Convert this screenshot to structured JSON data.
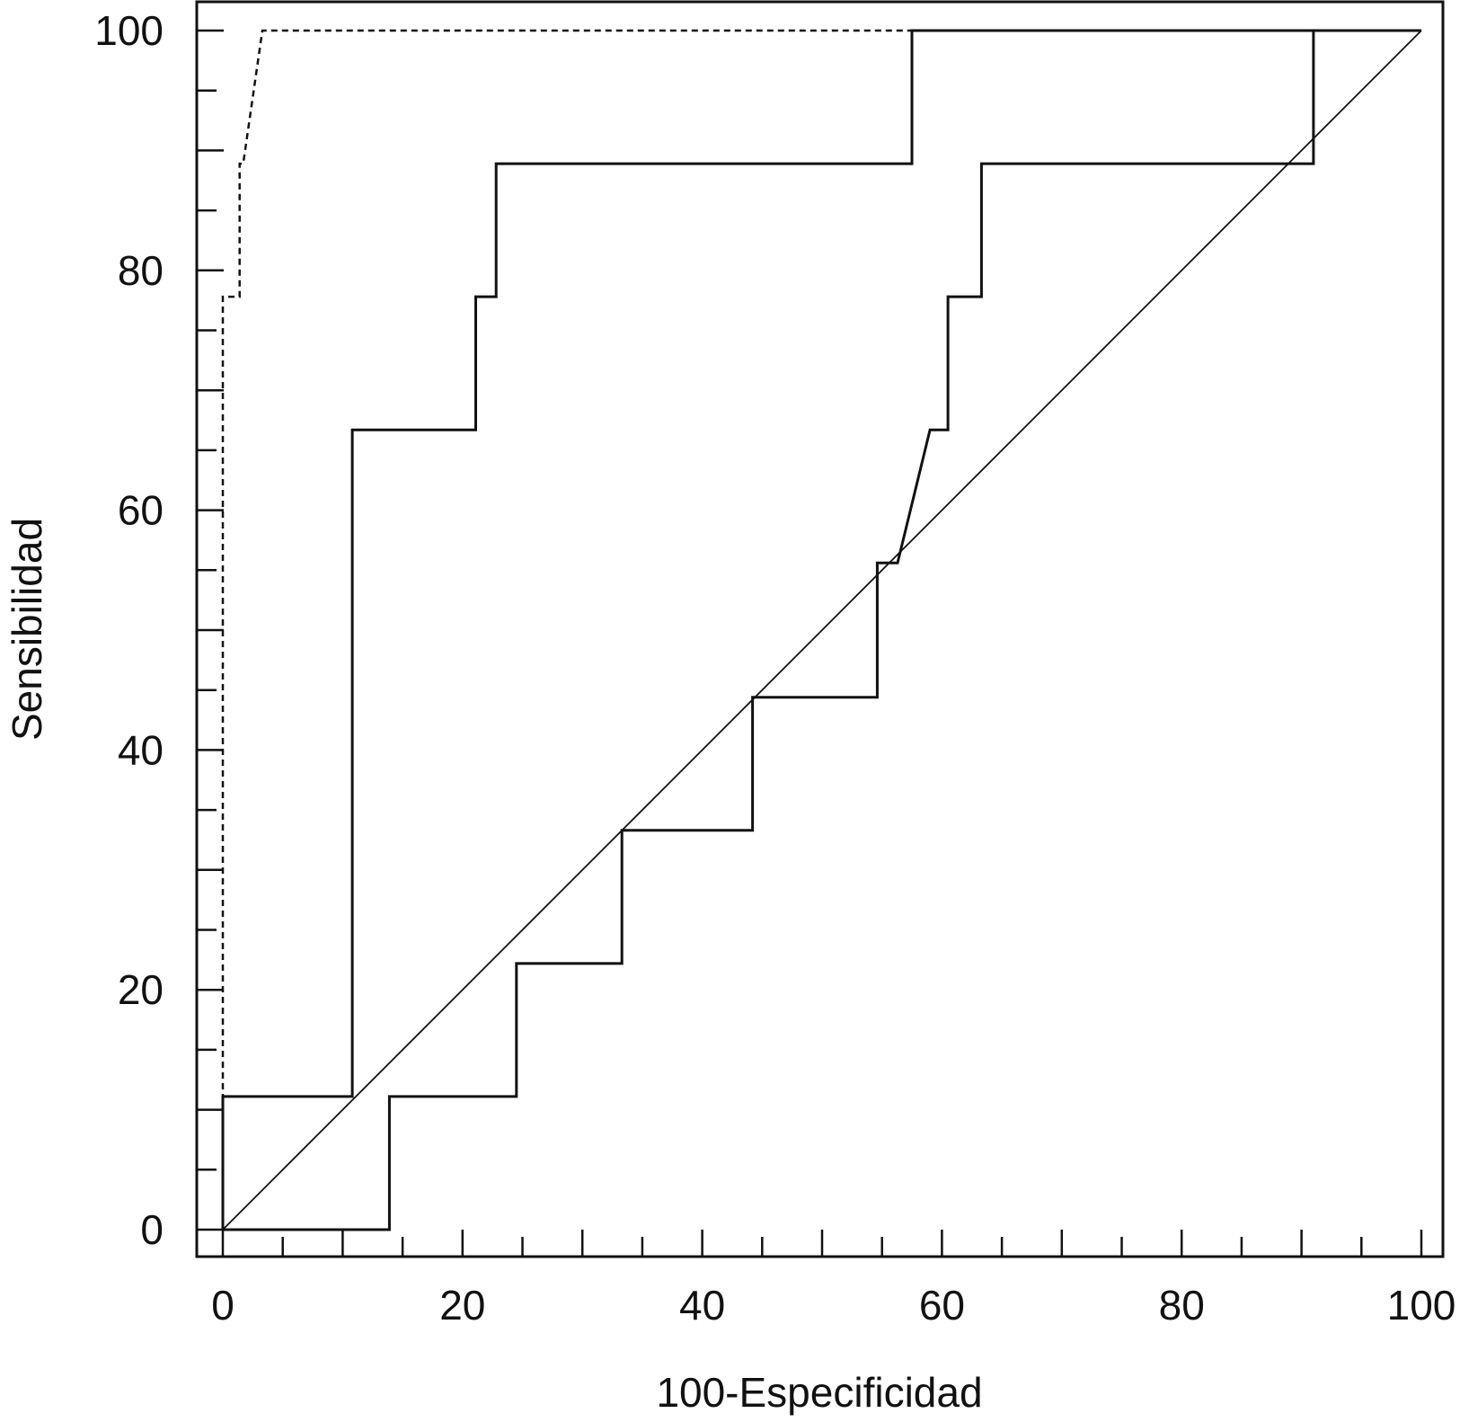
{
  "chart_data": {
    "type": "line",
    "xlabel": "100-Especificidad",
    "ylabel": "Sensibilidad",
    "xlim": [
      0,
      100
    ],
    "ylim": [
      0,
      100
    ],
    "x_ticks": [
      "0",
      "20",
      "40",
      "60",
      "80",
      "100"
    ],
    "y_ticks": [
      "0",
      "20",
      "40",
      "60",
      "80",
      "100"
    ],
    "grid": false,
    "legend": "none",
    "series": [
      {
        "style": "dashed",
        "x": [
          0,
          0,
          0,
          1.4,
          1.4,
          1.7,
          3.3,
          100
        ],
        "y": [
          0,
          11.1,
          77.8,
          77.8,
          88.9,
          88.9,
          100,
          100
        ]
      },
      {
        "style": "solid",
        "x": [
          0,
          0,
          10.8,
          10.8,
          21.1,
          21.1,
          22.8,
          22.8,
          57.5,
          57.5,
          100
        ],
        "y": [
          0,
          11.1,
          11.1,
          66.7,
          66.7,
          77.8,
          77.8,
          88.9,
          88.9,
          100,
          100
        ]
      },
      {
        "style": "solid",
        "x": [
          0,
          13.9,
          13.9,
          24.5,
          24.5,
          33.3,
          33.3,
          44.2,
          44.2,
          54.6,
          54.6,
          56.3,
          59.0,
          60.5,
          60.5,
          63.3,
          63.3,
          91.0,
          91.0,
          100
        ],
        "y": [
          0,
          0,
          11.1,
          11.1,
          22.2,
          22.2,
          33.3,
          33.3,
          44.4,
          44.4,
          55.6,
          55.6,
          66.7,
          66.7,
          77.8,
          77.8,
          88.9,
          88.9,
          100,
          100
        ]
      },
      {
        "style": "reference",
        "x": [
          0,
          100
        ],
        "y": [
          0,
          100
        ]
      }
    ]
  }
}
